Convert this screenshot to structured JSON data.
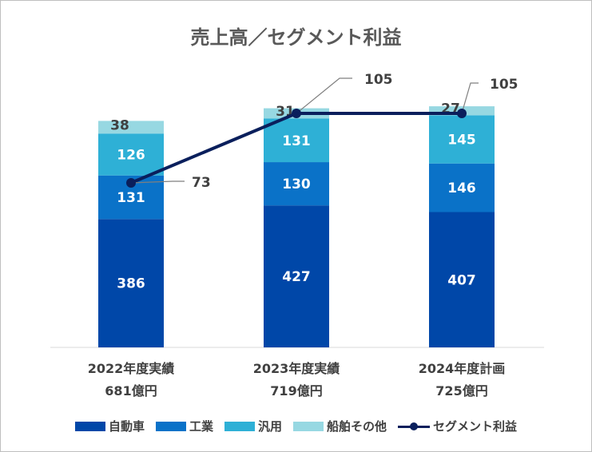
{
  "chart_data": {
    "type": "bar",
    "stacked": true,
    "title": "売上高／セグメント利益",
    "categories": [
      {
        "line1": "2022年度実績",
        "line2": "681億円"
      },
      {
        "line1": "2023年度実績",
        "line2": "719億円"
      },
      {
        "line1": "2024年度計画",
        "line2": "725億円"
      }
    ],
    "series": [
      {
        "name": "自動車",
        "values": [
          386,
          427,
          407
        ],
        "color": "#0047a8"
      },
      {
        "name": "工業",
        "values": [
          131,
          130,
          146
        ],
        "color": "#0a72c8"
      },
      {
        "name": "汎用",
        "values": [
          126,
          131,
          145
        ],
        "color": "#2eb0d6"
      },
      {
        "name": "船舶その他",
        "values": [
          38,
          31,
          27
        ],
        "color": "#97d8e2"
      }
    ],
    "line_series": {
      "name": "セグメント利益",
      "values": [
        73,
        105,
        105
      ],
      "color": "#0a1f5c"
    },
    "ylim": [
      0,
      730
    ],
    "grid": false,
    "legend_position": "bottom"
  }
}
